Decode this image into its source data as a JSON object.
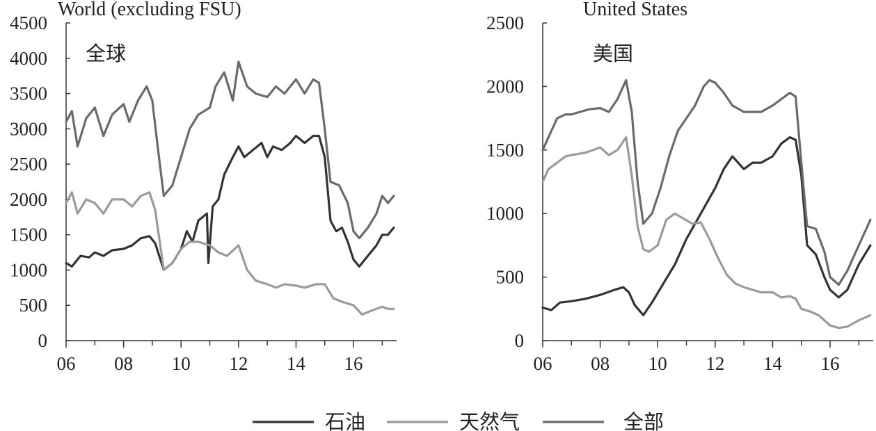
{
  "colors": {
    "oil": "#333333",
    "gas": "#9a9a9a",
    "total": "#6a6a6a",
    "axis": "#333333"
  },
  "legend": [
    {
      "series": "oil",
      "label": "石油"
    },
    {
      "series": "gas",
      "label": "天然气"
    },
    {
      "series": "total",
      "label": "全部"
    }
  ],
  "chart_data": [
    {
      "type": "line",
      "title": "World (excluding FSU)",
      "subtitle": "全球",
      "x_ticks": [
        6,
        8,
        10,
        12,
        14,
        16
      ],
      "x_tick_labels": [
        "06",
        "08",
        "10",
        "12",
        "14",
        "16"
      ],
      "xlim": [
        6,
        17.5
      ],
      "ylim": [
        0,
        4500
      ],
      "y_ticks": [
        0,
        500,
        1000,
        1500,
        2000,
        2500,
        3000,
        3500,
        4000,
        4500
      ],
      "series": [
        {
          "key": "oil",
          "name": "石油",
          "x": [
            6.0,
            6.2,
            6.5,
            6.8,
            7.0,
            7.3,
            7.6,
            8.0,
            8.3,
            8.6,
            8.9,
            9.1,
            9.4,
            9.7,
            10.0,
            10.2,
            10.4,
            10.6,
            10.9,
            10.95,
            11.1,
            11.3,
            11.5,
            11.8,
            12.0,
            12.2,
            12.5,
            12.8,
            13.0,
            13.2,
            13.5,
            13.8,
            14.0,
            14.3,
            14.6,
            14.8,
            15.0,
            15.2,
            15.4,
            15.6,
            15.8,
            16.0,
            16.2,
            16.5,
            16.8,
            17.0,
            17.2,
            17.4
          ],
          "y": [
            1100,
            1050,
            1200,
            1180,
            1250,
            1200,
            1280,
            1300,
            1350,
            1450,
            1480,
            1380,
            1000,
            1100,
            1300,
            1550,
            1400,
            1700,
            1800,
            1100,
            1900,
            2000,
            2350,
            2600,
            2750,
            2600,
            2700,
            2800,
            2600,
            2750,
            2700,
            2800,
            2900,
            2800,
            2900,
            2900,
            2600,
            1700,
            1550,
            1600,
            1400,
            1150,
            1050,
            1200,
            1350,
            1500,
            1500,
            1600
          ]
        },
        {
          "key": "gas",
          "name": "天然气",
          "x": [
            6.0,
            6.2,
            6.4,
            6.7,
            7.0,
            7.3,
            7.6,
            8.0,
            8.3,
            8.6,
            8.9,
            9.1,
            9.4,
            9.7,
            10.0,
            10.3,
            10.6,
            11.0,
            11.3,
            11.6,
            12.0,
            12.3,
            12.6,
            13.0,
            13.3,
            13.6,
            14.0,
            14.3,
            14.7,
            15.0,
            15.3,
            15.6,
            16.0,
            16.3,
            16.6,
            17.0,
            17.2,
            17.4
          ],
          "y": [
            1950,
            2100,
            1800,
            2000,
            1950,
            1800,
            2000,
            2000,
            1900,
            2050,
            2100,
            1850,
            1000,
            1100,
            1300,
            1400,
            1400,
            1350,
            1250,
            1200,
            1350,
            1000,
            850,
            800,
            750,
            800,
            780,
            750,
            800,
            800,
            600,
            550,
            500,
            370,
            420,
            480,
            450,
            450
          ]
        },
        {
          "key": "total",
          "name": "全部",
          "x": [
            6.0,
            6.2,
            6.4,
            6.7,
            7.0,
            7.3,
            7.6,
            8.0,
            8.2,
            8.5,
            8.8,
            9.0,
            9.2,
            9.4,
            9.7,
            10.0,
            10.3,
            10.6,
            11.0,
            11.2,
            11.5,
            11.8,
            12.0,
            12.3,
            12.6,
            13.0,
            13.3,
            13.6,
            14.0,
            14.3,
            14.6,
            14.8,
            15.0,
            15.2,
            15.5,
            15.8,
            16.0,
            16.2,
            16.5,
            16.8,
            17.0,
            17.2,
            17.4
          ],
          "y": [
            3100,
            3250,
            2750,
            3150,
            3300,
            2900,
            3200,
            3350,
            3100,
            3400,
            3600,
            3400,
            2700,
            2050,
            2200,
            2600,
            3000,
            3200,
            3300,
            3600,
            3800,
            3400,
            3950,
            3600,
            3500,
            3450,
            3600,
            3500,
            3700,
            3500,
            3700,
            3650,
            3000,
            2250,
            2200,
            1950,
            1550,
            1450,
            1600,
            1800,
            2050,
            1950,
            2050
          ]
        }
      ]
    },
    {
      "type": "line",
      "title": "United States",
      "subtitle": "美国",
      "x_ticks": [
        6,
        8,
        10,
        12,
        14,
        16
      ],
      "x_tick_labels": [
        "06",
        "08",
        "10",
        "12",
        "14",
        "16"
      ],
      "xlim": [
        6,
        17.5
      ],
      "ylim": [
        0,
        2500
      ],
      "y_ticks": [
        0,
        500,
        1000,
        1500,
        2000,
        2500
      ],
      "series": [
        {
          "key": "oil",
          "name": "石油",
          "x": [
            6.0,
            6.3,
            6.6,
            7.0,
            7.5,
            8.0,
            8.5,
            8.8,
            9.0,
            9.2,
            9.5,
            9.8,
            10.2,
            10.6,
            11.0,
            11.5,
            12.0,
            12.3,
            12.6,
            12.8,
            13.0,
            13.3,
            13.6,
            14.0,
            14.3,
            14.6,
            14.8,
            15.0,
            15.2,
            15.5,
            15.8,
            16.0,
            16.3,
            16.6,
            17.0,
            17.4
          ],
          "y": [
            260,
            240,
            300,
            310,
            330,
            360,
            400,
            420,
            380,
            280,
            200,
            300,
            450,
            600,
            800,
            1000,
            1200,
            1350,
            1450,
            1400,
            1350,
            1400,
            1400,
            1450,
            1550,
            1600,
            1580,
            1300,
            750,
            680,
            500,
            400,
            340,
            400,
            600,
            750
          ]
        },
        {
          "key": "gas",
          "name": "天然气",
          "x": [
            6.0,
            6.2,
            6.5,
            6.8,
            7.0,
            7.5,
            8.0,
            8.3,
            8.6,
            8.9,
            9.1,
            9.3,
            9.5,
            9.7,
            10.0,
            10.3,
            10.6,
            10.9,
            11.2,
            11.5,
            11.8,
            12.1,
            12.4,
            12.7,
            13.0,
            13.3,
            13.6,
            14.0,
            14.3,
            14.6,
            14.8,
            15.0,
            15.3,
            15.6,
            16.0,
            16.3,
            16.6,
            17.0,
            17.4
          ],
          "y": [
            1250,
            1350,
            1400,
            1450,
            1460,
            1480,
            1520,
            1460,
            1500,
            1600,
            1300,
            900,
            720,
            700,
            750,
            950,
            1000,
            960,
            920,
            930,
            800,
            650,
            520,
            450,
            420,
            400,
            380,
            380,
            340,
            350,
            330,
            250,
            230,
            200,
            120,
            100,
            110,
            160,
            200
          ]
        },
        {
          "key": "total",
          "name": "全部",
          "x": [
            6.0,
            6.2,
            6.5,
            6.8,
            7.0,
            7.3,
            7.6,
            8.0,
            8.3,
            8.6,
            8.9,
            9.1,
            9.3,
            9.5,
            9.8,
            10.1,
            10.4,
            10.7,
            11.0,
            11.3,
            11.6,
            11.8,
            12.0,
            12.3,
            12.6,
            13.0,
            13.3,
            13.6,
            14.0,
            14.3,
            14.6,
            14.8,
            15.0,
            15.2,
            15.5,
            15.8,
            16.0,
            16.3,
            16.6,
            17.0,
            17.4
          ],
          "y": [
            1500,
            1600,
            1750,
            1780,
            1780,
            1800,
            1820,
            1830,
            1800,
            1900,
            2050,
            1800,
            1250,
            920,
            1000,
            1200,
            1450,
            1650,
            1750,
            1850,
            2000,
            2050,
            2030,
            1950,
            1850,
            1800,
            1800,
            1800,
            1850,
            1900,
            1950,
            1920,
            1400,
            900,
            880,
            700,
            500,
            440,
            550,
            750,
            950
          ]
        }
      ]
    }
  ]
}
